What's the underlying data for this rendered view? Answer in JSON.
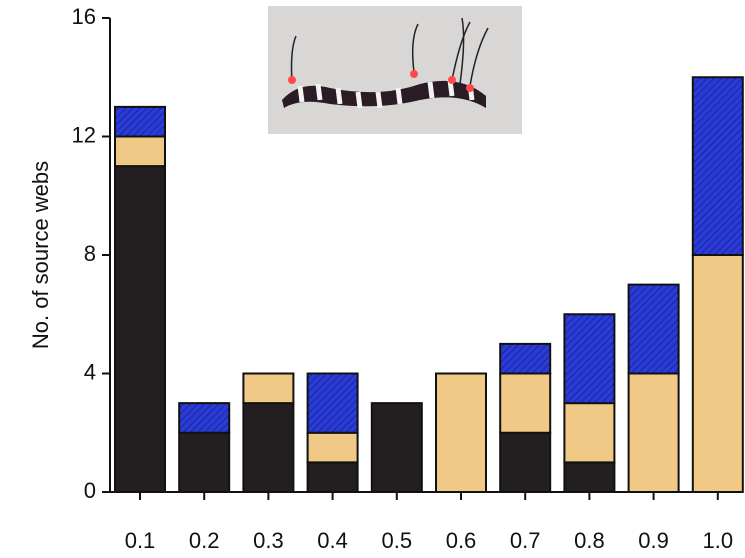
{
  "chart_data": {
    "type": "stacked_bar",
    "y_label": "No. of source webs",
    "categories": [
      "0.1",
      "0.2",
      "0.3",
      "0.4",
      "0.5",
      "0.6",
      "0.7",
      "0.8",
      "0.9",
      "1.0"
    ],
    "series": [
      {
        "color": "#231f20",
        "values": [
          11,
          2,
          3,
          1,
          3,
          0,
          2,
          1,
          0,
          0
        ]
      },
      {
        "color": "#f0c987",
        "values": [
          1,
          0,
          1,
          1,
          0,
          4,
          2,
          2,
          4,
          8
        ]
      },
      {
        "color": "#2a3bd8",
        "hatch": true,
        "values": [
          1,
          1,
          0,
          2,
          0,
          0,
          1,
          3,
          3,
          6
        ]
      }
    ],
    "ylim": [
      0,
      16
    ],
    "yticks": [
      0,
      4,
      8,
      12,
      16
    ]
  }
}
